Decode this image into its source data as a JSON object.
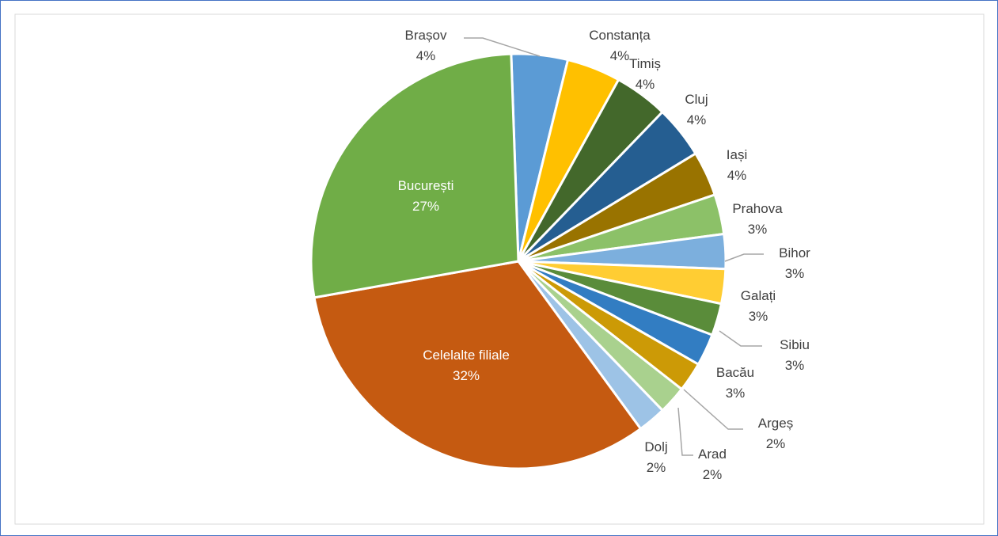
{
  "chart_data": {
    "type": "pie",
    "title": "",
    "legend": "none",
    "colors": {
      "border": "#4472c4",
      "inner_border": "#d9d9d9",
      "leader": "#a6a6a6",
      "label_inside": "#ffffff",
      "label_outside": "#404040"
    },
    "slices": [
      {
        "label": "Brașov",
        "pct": "4%",
        "value": 4.4,
        "color": "#5b9bd5"
      },
      {
        "label": "Constanța",
        "pct": "4%",
        "value": 4.2,
        "color": "#ffc000"
      },
      {
        "label": "Timiș",
        "pct": "4%",
        "value": 4.2,
        "color": "#43682b"
      },
      {
        "label": "Cluj",
        "pct": "4%",
        "value": 4.1,
        "color": "#255e91"
      },
      {
        "label": "Iași",
        "pct": "4%",
        "value": 3.5,
        "color": "#997300"
      },
      {
        "label": "Prahova",
        "pct": "3%",
        "value": 3.1,
        "color": "#8cc168"
      },
      {
        "label": "Bihor",
        "pct": "3%",
        "value": 2.7,
        "color": "#7cafdd"
      },
      {
        "label": "Galați",
        "pct": "3%",
        "value": 2.7,
        "color": "#ffcd33"
      },
      {
        "label": "Sibiu",
        "pct": "3%",
        "value": 2.5,
        "color": "#5a8c3a"
      },
      {
        "label": "Bacău",
        "pct": "3%",
        "value": 2.5,
        "color": "#327dc2"
      },
      {
        "label": "Argeș",
        "pct": "2%",
        "value": 2.3,
        "color": "#cc9a06"
      },
      {
        "label": "Arad",
        "pct": "2%",
        "value": 2.2,
        "color": "#a9d18e"
      },
      {
        "label": "Dolj",
        "pct": "2%",
        "value": 2.2,
        "color": "#9dc3e6"
      },
      {
        "label": "Celelalte filiale",
        "pct": "32%",
        "value": 32.3,
        "color": "#c55a11"
      },
      {
        "label": "București",
        "pct": "27%",
        "value": 27.3,
        "color": "#70ad47"
      }
    ]
  }
}
